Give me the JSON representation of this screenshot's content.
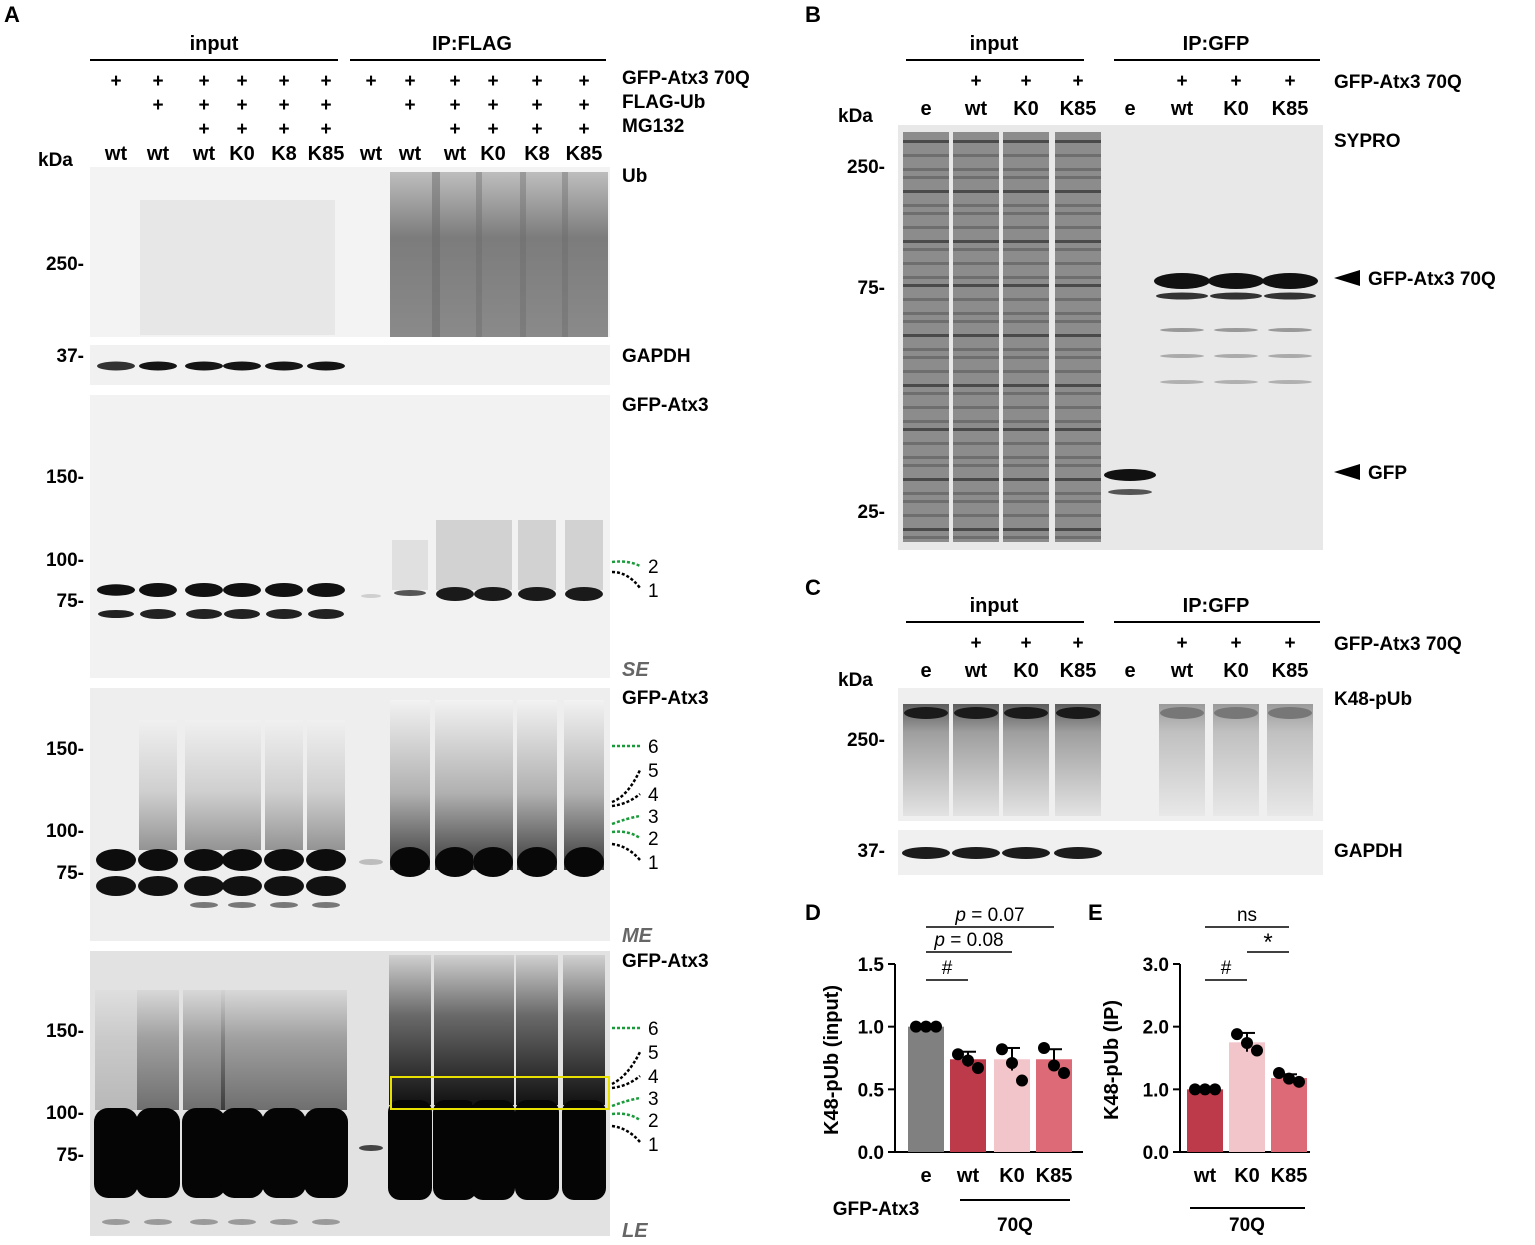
{
  "panel_letters": [
    "A",
    "B",
    "C",
    "D",
    "E"
  ],
  "kda_label": "kDa",
  "panel_a": {
    "group_input": "input",
    "group_ip": "IP:FLAG",
    "row_labels": [
      "GFP-Atx3 70Q",
      "FLAG-Ub",
      "MG132"
    ],
    "plus_rows": [
      [
        1,
        1,
        1,
        1,
        1,
        1,
        1,
        1,
        1,
        1,
        1,
        1
      ],
      [
        0,
        1,
        1,
        1,
        1,
        1,
        0,
        1,
        1,
        1,
        1,
        1
      ],
      [
        0,
        0,
        1,
        1,
        1,
        1,
        0,
        0,
        1,
        1,
        1,
        1
      ]
    ],
    "plus_symbol": "+",
    "lanes": [
      "wt",
      "wt",
      "wt",
      "K0",
      "K8",
      "K85",
      "wt",
      "wt",
      "wt",
      "K0",
      "K8",
      "K85"
    ],
    "blots": [
      {
        "label": "Ub",
        "markers": [
          "250-"
        ],
        "exposure": ""
      },
      {
        "label": "GAPDH",
        "markers": [
          "37-"
        ],
        "exposure": ""
      },
      {
        "label": "GFP-Atx3",
        "markers": [
          "150-",
          "100-",
          "75-"
        ],
        "exposure": "SE",
        "bands": [
          "2",
          "1"
        ]
      },
      {
        "label": "GFP-Atx3",
        "markers": [
          "150-",
          "100-",
          "75-"
        ],
        "exposure": "ME",
        "bands": [
          "6",
          "5",
          "4",
          "3",
          "2",
          "1"
        ]
      },
      {
        "label": "GFP-Atx3",
        "markers": [
          "150-",
          "100-",
          "75-"
        ],
        "exposure": "LE",
        "bands": [
          "6",
          "5",
          "4",
          "3",
          "2",
          "1"
        ]
      }
    ]
  },
  "panel_b": {
    "group_input": "input",
    "group_ip": "IP:GFP",
    "row_label": "GFP-Atx3 70Q",
    "plus_row": [
      0,
      1,
      1,
      1,
      0,
      1,
      1,
      1
    ],
    "lanes": [
      "e",
      "wt",
      "K0",
      "K85",
      "e",
      "wt",
      "K0",
      "K85"
    ],
    "stain": "SYPRO",
    "markers": [
      "250-",
      "75-",
      "25-"
    ],
    "arrows": [
      "GFP-Atx3 70Q",
      "GFP"
    ]
  },
  "panel_c": {
    "group_input": "input",
    "group_ip": "IP:GFP",
    "row_label": "GFP-Atx3 70Q",
    "plus_row": [
      0,
      1,
      1,
      1,
      0,
      1,
      1,
      1
    ],
    "lanes": [
      "e",
      "wt",
      "K0",
      "K85",
      "e",
      "wt",
      "K0",
      "K85"
    ],
    "blots": [
      {
        "label": "K48-pUb",
        "markers": [
          "250-"
        ]
      },
      {
        "label": "GAPDH",
        "markers": [
          "37-"
        ]
      }
    ]
  },
  "chart_data": [
    {
      "type": "bar",
      "panel": "D",
      "ylabel": "K48-pUb (input)",
      "ylim": [
        0,
        1.5
      ],
      "yticks": [
        "0.0",
        "0.5",
        "1.0",
        "1.5"
      ],
      "categories": [
        "e",
        "wt",
        "K0",
        "K85"
      ],
      "values": [
        1.0,
        0.74,
        0.74,
        0.74
      ],
      "errors": [
        0,
        0.06,
        0.09,
        0.08
      ],
      "points": [
        [
          1.0,
          1.0,
          1.0
        ],
        [
          0.78,
          0.67,
          0.73
        ],
        [
          0.82,
          0.57,
          0.71
        ],
        [
          0.83,
          0.63,
          0.69
        ]
      ],
      "colors": [
        "#808080",
        "#bd3a4b",
        "#f2c5ca",
        "#dc6b77"
      ],
      "group_label": "GFP-Atx3",
      "group_sublabel": "70Q",
      "annotations": [
        {
          "text": "p = 0.07",
          "italic_prefix": "p",
          "rest": " = 0.07",
          "from": 0,
          "to": 3
        },
        {
          "text": "p = 0.08",
          "italic_prefix": "p",
          "rest": " = 0.08",
          "from": 0,
          "to": 2
        },
        {
          "text": "#",
          "from": 0,
          "to": 1
        }
      ]
    },
    {
      "type": "bar",
      "panel": "E",
      "ylabel": "K48-pUb (IP)",
      "ylim": [
        0,
        3.0
      ],
      "yticks": [
        "0.0",
        "1.0",
        "2.0",
        "3.0"
      ],
      "categories": [
        "wt",
        "K0",
        "K85"
      ],
      "values": [
        1.0,
        1.75,
        1.18
      ],
      "errors": [
        0,
        0.15,
        0.06
      ],
      "points": [
        [
          1.0,
          1.0,
          1.0
        ],
        [
          1.88,
          1.62,
          1.74
        ],
        [
          1.26,
          1.12,
          1.17
        ]
      ],
      "colors": [
        "#bd3a4b",
        "#f2c5ca",
        "#dc6b77"
      ],
      "group_sublabel": "70Q",
      "annotations": [
        {
          "text": "ns",
          "from": 0,
          "to": 2
        },
        {
          "text": "#",
          "from": 0,
          "to": 1
        },
        {
          "text": "*",
          "from": 1,
          "to": 2
        }
      ]
    }
  ]
}
